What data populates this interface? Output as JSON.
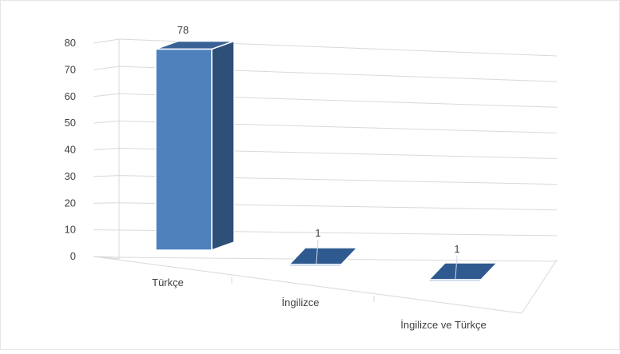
{
  "chart_data": {
    "type": "bar",
    "categories": [
      "Türkçe",
      "İngilizce",
      "İngilizce ve Türkçe"
    ],
    "values": [
      78,
      1,
      1
    ],
    "data_labels": [
      "78",
      "1",
      "1"
    ],
    "ylim": [
      0,
      80
    ],
    "yticks": [
      "0",
      "10",
      "20",
      "30",
      "40",
      "50",
      "60",
      "70",
      "80"
    ],
    "title": "",
    "xlabel": "",
    "ylabel": "",
    "grid": true,
    "legend": "none",
    "style": "3d-column",
    "colors": {
      "bar_front": "#4f81bd",
      "bar_side": "#2e4f78",
      "bar_top": "#3a6296",
      "gridline": "#d9d9d9",
      "axis_text": "#404040"
    }
  }
}
